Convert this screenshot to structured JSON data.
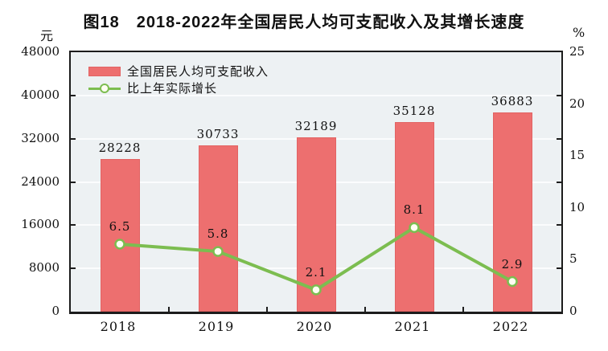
{
  "title": "图18　2018-2022年全国居民人均可支配收入及其增长速度",
  "legend": {
    "income_label": "全国居民人均可支配收入",
    "growth_label": "比上年实际增长"
  },
  "colors": {
    "bar": "#ed6f6f",
    "bar_border": "#e26363",
    "line": "#7cbd50",
    "marker_fill": "#fffef2",
    "plot_background": "#edf1f3",
    "gridline": "#fbfcfd",
    "axis": "#1c1c1c",
    "text": "#111111"
  },
  "chart_data": {
    "type": "bar",
    "subtype": "bar+line combo, dual axis",
    "title": "图18　2018-2022年全国居民人均可支配收入及其增长速度",
    "categories": [
      "2018",
      "2019",
      "2020",
      "2021",
      "2022"
    ],
    "series": [
      {
        "name": "全国居民人均可支配收入",
        "type": "bar",
        "axis": "left",
        "values": [
          28228,
          30733,
          32189,
          35128,
          36883
        ]
      },
      {
        "name": "比上年实际增长",
        "type": "line",
        "axis": "right",
        "values": [
          6.5,
          5.8,
          2.1,
          8.1,
          2.9
        ]
      }
    ],
    "left_axis": {
      "unit": "元",
      "min": 0,
      "max": 48000,
      "step": 8000,
      "ticks": [
        0,
        8000,
        16000,
        24000,
        32000,
        40000,
        48000
      ]
    },
    "right_axis": {
      "unit": "%",
      "min": 0,
      "max": 25,
      "step": 5,
      "ticks": [
        0,
        5,
        10,
        15,
        20,
        25
      ]
    },
    "grid": true,
    "legend_position": "top-left-inside"
  }
}
